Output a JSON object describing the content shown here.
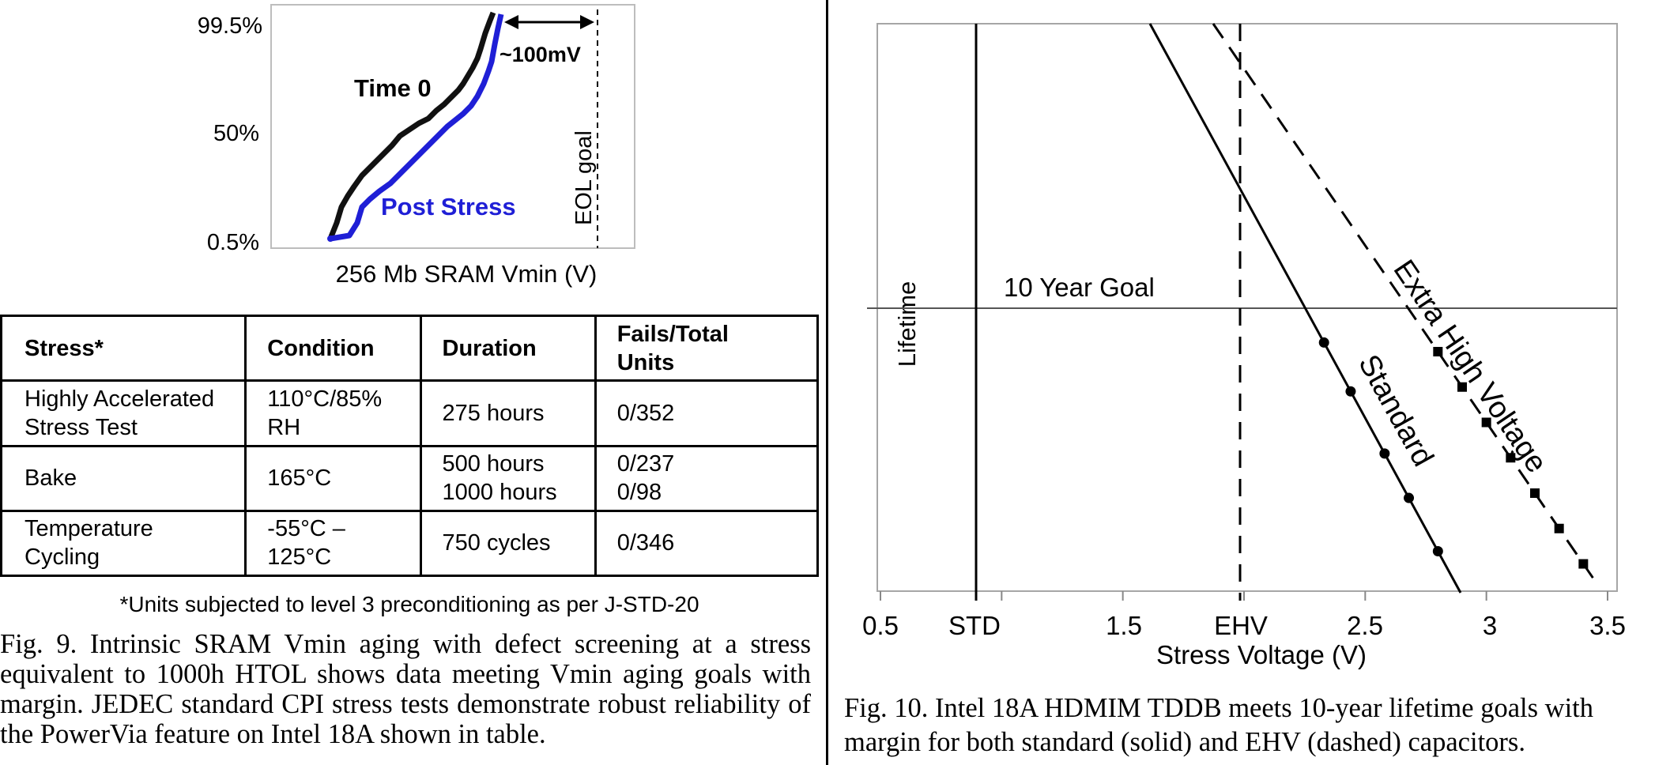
{
  "fig9": {
    "chart_data": {
      "type": "line",
      "xlabel": "256 Mb SRAM Vmin (V)",
      "y_tick_labels": [
        "99.5%",
        "50%",
        "0.5%"
      ],
      "series": [
        {
          "name": "Time 0",
          "color": "#000000"
        },
        {
          "name": "Post Stress",
          "color": "#1f1fd6"
        }
      ],
      "annotations": [
        "~100mV",
        "EOL goal"
      ]
    },
    "table": {
      "headers": [
        "Stress*",
        "Condition",
        "Duration",
        [
          "Fails/Total",
          "Units"
        ]
      ],
      "rows": [
        {
          "stress": [
            "Highly Accelerated",
            "Stress Test"
          ],
          "condition": [
            "110°C/85%",
            "RH"
          ],
          "duration": [
            "275 hours"
          ],
          "fails": [
            "0/352"
          ]
        },
        {
          "stress": [
            "Bake"
          ],
          "condition": [
            "165°C"
          ],
          "duration": [
            "500 hours",
            "1000 hours"
          ],
          "fails": [
            "0/237",
            "0/98"
          ]
        },
        {
          "stress": [
            "Temperature",
            "Cycling"
          ],
          "condition": [
            "-55°C –",
            "125°C"
          ],
          "duration": [
            "750 cycles"
          ],
          "fails": [
            "0/346"
          ]
        }
      ],
      "footnote": "*Units subjected to level 3 preconditioning as per J-STD-20"
    },
    "caption": "Fig. 9. Intrinsic SRAM Vmin aging with defect screening at a stress equivalent to 1000h HTOL shows data meeting Vmin aging goals with margin. JEDEC standard CPI stress tests demonstrate robust reliability of the PowerVia feature on Intel 18A shown in table."
  },
  "fig10": {
    "chart_data": {
      "type": "line",
      "xlabel": "Stress Voltage (V)",
      "ylabel": "Lifetime",
      "x_tick_labels": [
        "0.5",
        "STD",
        "1.5",
        "EHV",
        "2.5",
        "3",
        "3.5"
      ],
      "reference_lines": {
        "horizontal": "10 Year Goal",
        "vertical_solid": "STD",
        "vertical_dashed": "EHV"
      },
      "series": [
        {
          "name": "Standard",
          "style": "solid",
          "points_x": [
            2.33,
            2.44,
            2.58,
            2.68,
            2.8
          ]
        },
        {
          "name": "Extra High Voltage",
          "style": "dashed",
          "points_x": [
            2.8,
            2.9,
            3.0,
            3.1,
            3.2,
            3.3,
            3.4
          ]
        }
      ]
    },
    "caption_lines": [
      "Fig. 10. Intel 18A HDMIM TDDB meets 10-year lifetime goals with",
      "margin for both standard (solid) and EHV (dashed) capacitors."
    ]
  }
}
